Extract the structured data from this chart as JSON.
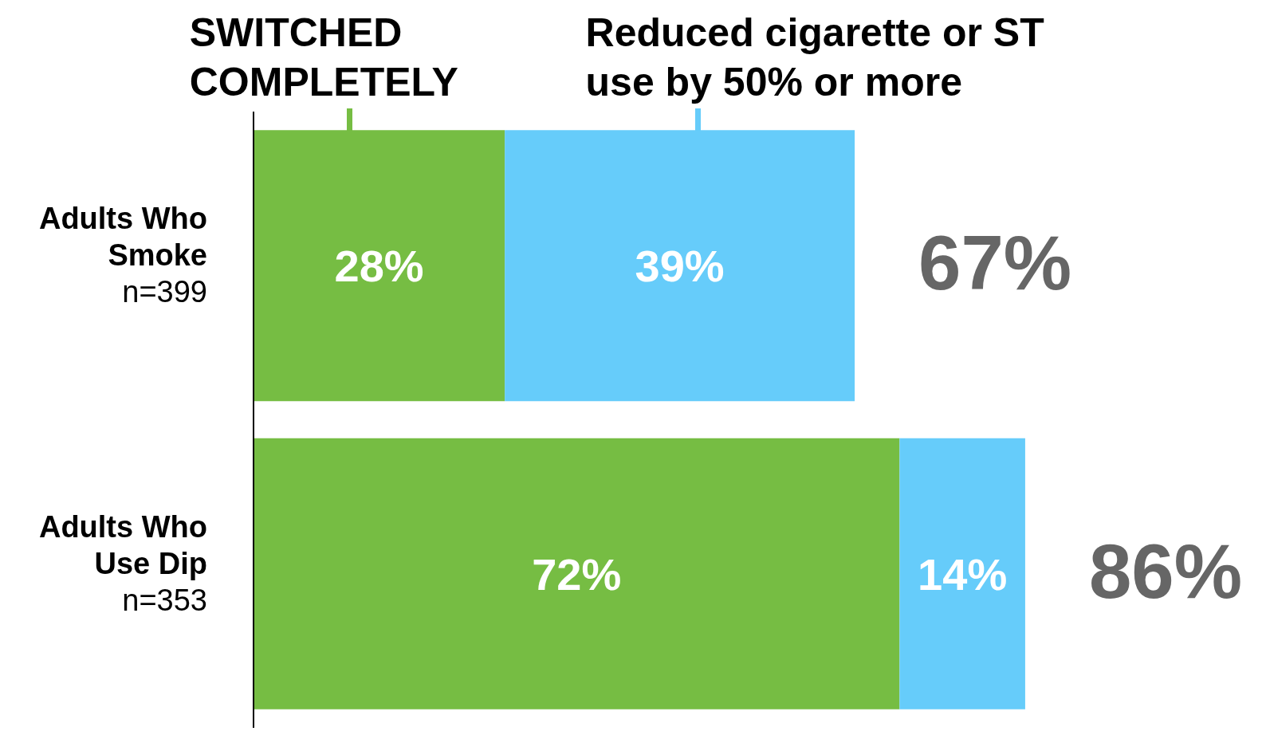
{
  "chart_data": {
    "type": "bar",
    "orientation": "horizontal",
    "stacked": true,
    "legend": "top",
    "categories": [
      "Adults Who\nSmoke\nn=399",
      "Adults Who\nUse Dip\nn=353"
    ],
    "series": [
      {
        "name": "SWITCHED\nCOMPLETELY",
        "color": "#76bd43",
        "values": [
          28,
          72
        ],
        "value_labels": [
          "28%",
          "72%"
        ]
      },
      {
        "name": "Reduced cigarette or ST\nuse by 50% or more",
        "color": "#66ccfa",
        "values": [
          39,
          14
        ],
        "value_labels": [
          "39%",
          "14%"
        ]
      }
    ],
    "totals": [
      "67%",
      "86%"
    ]
  }
}
